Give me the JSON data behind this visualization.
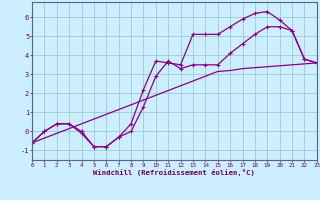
{
  "xlabel": "Windchill (Refroidissement éolien,°C)",
  "background_color": "#cceeff",
  "grid_color": "#99cccc",
  "line_color": "#880088",
  "x_hours": [
    0,
    1,
    2,
    3,
    4,
    5,
    6,
    7,
    8,
    9,
    10,
    11,
    12,
    13,
    14,
    15,
    16,
    17,
    18,
    19,
    20,
    21,
    22,
    23
  ],
  "line1_y": [
    -0.6,
    0.0,
    0.4,
    0.4,
    -0.1,
    -0.8,
    -0.8,
    -0.3,
    0.4,
    2.2,
    3.7,
    3.6,
    3.5,
    5.1,
    5.1,
    5.1,
    5.5,
    5.9,
    6.2,
    6.3,
    5.85,
    5.3,
    3.8,
    3.6
  ],
  "line2_y": [
    -0.6,
    0.0,
    0.4,
    0.4,
    0.0,
    -0.8,
    -0.8,
    -0.3,
    0.0,
    1.3,
    2.9,
    3.7,
    3.3,
    3.5,
    3.5,
    3.5,
    4.1,
    4.6,
    5.1,
    5.5,
    5.5,
    5.3,
    3.8,
    3.6
  ],
  "line3_y": [
    -0.6,
    -0.35,
    -0.1,
    0.15,
    0.4,
    0.65,
    0.9,
    1.15,
    1.4,
    1.65,
    1.9,
    2.15,
    2.4,
    2.65,
    2.9,
    3.15,
    3.2,
    3.3,
    3.35,
    3.4,
    3.45,
    3.5,
    3.55,
    3.6
  ],
  "xlim": [
    0,
    23
  ],
  "ylim": [
    -1.5,
    6.8
  ],
  "yticks": [
    -1,
    0,
    1,
    2,
    3,
    4,
    5,
    6
  ]
}
